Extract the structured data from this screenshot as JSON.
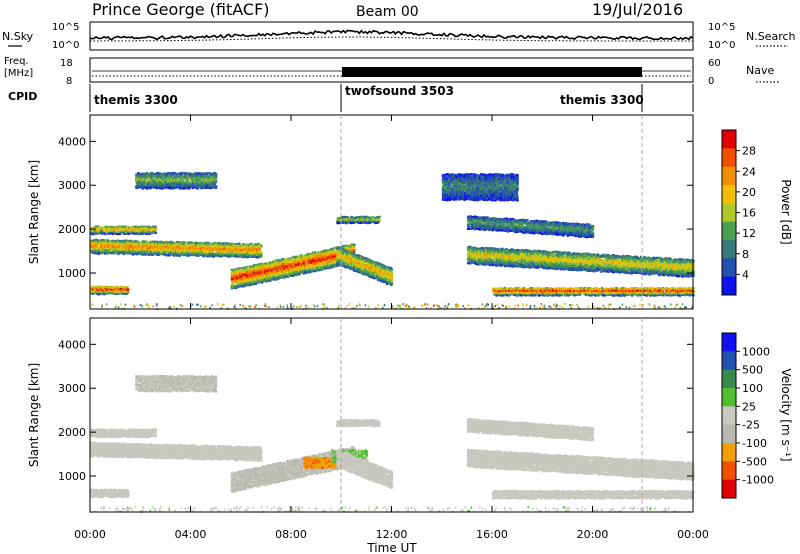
{
  "header": {
    "station": "Prince George (fitACF)",
    "beam": "Beam 00",
    "date": "19/Jul/2016"
  },
  "noise_panel": {
    "left_label": "N.Sky",
    "right_label": "N.Search",
    "left_ticks": [
      "10^5",
      "10^0"
    ],
    "right_ticks": [
      "10^5",
      "10^0"
    ]
  },
  "freq_panel": {
    "label_line1": "Freq.",
    "label_line2": "[MHz]",
    "left_ticks": [
      "18",
      "8"
    ],
    "right_ticks": [
      "60",
      "0"
    ],
    "right_label": "Nave"
  },
  "cpid_panel": {
    "label": "CPID",
    "segments": [
      {
        "name": "themis 3300",
        "start_hour": 0,
        "end_hour": 10
      },
      {
        "name": "twofsound 3503",
        "start_hour": 10,
        "end_hour": 22
      },
      {
        "name": "themis 3300",
        "start_hour": 22,
        "end_hour": 24
      }
    ]
  },
  "colors": {
    "power_scale": [
      "#1010f0",
      "#2050b0",
      "#3a7a7a",
      "#4aa050",
      "#b0c828",
      "#f0c000",
      "#f09000",
      "#f05000",
      "#e00000"
    ],
    "velocity_scale": [
      "#e00000",
      "#f05000",
      "#f0a000",
      "#b8b8b0",
      "#c8c8c0",
      "#50c030",
      "#3a8a50",
      "#2050b0",
      "#1010f0"
    ]
  },
  "chart_data": [
    {
      "type": "heatmap",
      "name": "power",
      "xlabel": "",
      "ylabel": "Slant Range [km]",
      "xlim": [
        0,
        24
      ],
      "ylim": [
        180,
        4600
      ],
      "yticks": [
        1000,
        2000,
        3000,
        4000
      ],
      "colorbar": {
        "label": "Power [dB]",
        "ticks": [
          "28",
          "24",
          "20",
          "16",
          "12",
          "8",
          "4"
        ],
        "range": [
          0,
          30
        ]
      },
      "regions": [
        {
          "t0": 0.0,
          "t1": 6.8,
          "r_center": 1650,
          "r_width": 160,
          "value": 20,
          "drift": -100
        },
        {
          "t0": 0.0,
          "t1": 2.6,
          "r_center": 2020,
          "r_width": 90,
          "value": 18,
          "drift": 0
        },
        {
          "t0": 0.0,
          "t1": 1.5,
          "r_center": 650,
          "r_width": 90,
          "value": 24,
          "drift": 0
        },
        {
          "t0": 1.8,
          "t1": 5.0,
          "r_center": 3150,
          "r_width": 180,
          "value": 12,
          "drift": 0
        },
        {
          "t0": 5.6,
          "t1": 10.5,
          "r_center": 900,
          "r_width": 220,
          "value": 24,
          "drift": 600
        },
        {
          "t0": 9.8,
          "t1": 12.0,
          "r_center": 1450,
          "r_width": 200,
          "value": 18,
          "drift": -500
        },
        {
          "t0": 9.8,
          "t1": 11.5,
          "r_center": 2250,
          "r_width": 70,
          "value": 14,
          "drift": 0
        },
        {
          "t0": 15.0,
          "t1": 24.0,
          "r_center": 1450,
          "r_width": 200,
          "value": 16,
          "drift": -300
        },
        {
          "t0": 15.0,
          "t1": 20.0,
          "r_center": 2200,
          "r_width": 150,
          "value": 10,
          "drift": -200
        },
        {
          "t0": 16.0,
          "t1": 24.0,
          "r_center": 620,
          "r_width": 90,
          "value": 24,
          "drift": 0
        },
        {
          "t0": 14.0,
          "t1": 17.0,
          "r_center": 3000,
          "r_width": 300,
          "value": 8,
          "drift": 0
        }
      ]
    },
    {
      "type": "heatmap",
      "name": "velocity",
      "xlabel": "Time UT",
      "ylabel": "Slant Range [km]",
      "xlim": [
        0,
        24
      ],
      "ylim": [
        180,
        4600
      ],
      "xticks": [
        "00:00",
        "04:00",
        "08:00",
        "12:00",
        "16:00",
        "20:00",
        "00:00"
      ],
      "yticks": [
        1000,
        2000,
        3000,
        4000
      ],
      "colorbar": {
        "label": "Velocity [m s⁻¹]",
        "ticks": [
          "1000",
          "500",
          "100",
          "25",
          "-25",
          "-100",
          "-500",
          "-1000"
        ],
        "range": [
          -1200,
          1200
        ]
      },
      "regions": [
        {
          "t0": 0.0,
          "t1": 6.8,
          "r_center": 1650,
          "r_width": 160,
          "value": 0,
          "drift": -100
        },
        {
          "t0": 0.0,
          "t1": 2.6,
          "r_center": 2020,
          "r_width": 90,
          "value": 0,
          "drift": 0
        },
        {
          "t0": 0.0,
          "t1": 1.5,
          "r_center": 650,
          "r_width": 90,
          "value": 0,
          "drift": 0
        },
        {
          "t0": 1.8,
          "t1": 5.0,
          "r_center": 3150,
          "r_width": 180,
          "value": -120,
          "drift": 0
        },
        {
          "t0": 5.6,
          "t1": 10.5,
          "r_center": 900,
          "r_width": 220,
          "value": -150,
          "drift": 600
        },
        {
          "t0": 8.5,
          "t1": 10.5,
          "r_center": 1350,
          "r_width": 120,
          "value": -600,
          "drift": 0
        },
        {
          "t0": 9.6,
          "t1": 11.0,
          "r_center": 1500,
          "r_width": 140,
          "value": 200,
          "drift": 0
        },
        {
          "t0": 9.8,
          "t1": 12.0,
          "r_center": 1450,
          "r_width": 200,
          "value": 0,
          "drift": -500
        },
        {
          "t0": 9.8,
          "t1": 11.5,
          "r_center": 2250,
          "r_width": 70,
          "value": 0,
          "drift": 0
        },
        {
          "t0": 15.0,
          "t1": 24.0,
          "r_center": 1450,
          "r_width": 200,
          "value": 0,
          "drift": -300
        },
        {
          "t0": 15.0,
          "t1": 20.0,
          "r_center": 2200,
          "r_width": 150,
          "value": 0,
          "drift": -200
        },
        {
          "t0": 16.0,
          "t1": 24.0,
          "r_center": 620,
          "r_width": 90,
          "value": 0,
          "drift": 0
        }
      ]
    }
  ]
}
